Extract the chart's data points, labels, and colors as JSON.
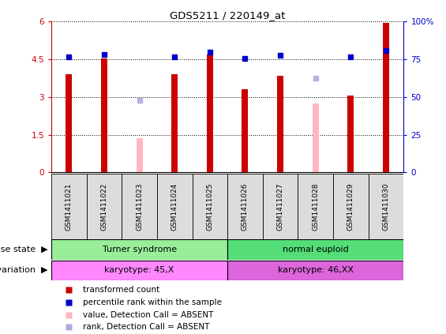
{
  "title": "GDS5211 / 220149_at",
  "samples": [
    "GSM1411021",
    "GSM1411022",
    "GSM1411023",
    "GSM1411024",
    "GSM1411025",
    "GSM1411026",
    "GSM1411027",
    "GSM1411028",
    "GSM1411029",
    "GSM1411030"
  ],
  "red_values": [
    3.9,
    4.55,
    null,
    3.9,
    4.7,
    3.3,
    3.85,
    null,
    3.05,
    5.95
  ],
  "pink_values": [
    null,
    null,
    1.35,
    null,
    null,
    null,
    null,
    2.75,
    null,
    null
  ],
  "blue_values": [
    4.6,
    4.7,
    null,
    4.6,
    4.8,
    4.55,
    4.65,
    null,
    4.6,
    4.85
  ],
  "lavender_values": [
    null,
    null,
    2.87,
    null,
    null,
    null,
    null,
    3.75,
    null,
    null
  ],
  "ylim": [
    0,
    6
  ],
  "y2lim": [
    0,
    100
  ],
  "yticks": [
    0,
    1.5,
    3.0,
    4.5,
    6.0
  ],
  "y2ticks": [
    0,
    25,
    50,
    75,
    100
  ],
  "ytick_labels": [
    "0",
    "1.5",
    "3",
    "4.5",
    "6"
  ],
  "y2tick_labels": [
    "0",
    "25",
    "50",
    "75",
    "100%"
  ],
  "disease_state_groups": [
    {
      "label": "Turner syndrome",
      "start": 0,
      "end": 5,
      "color": "#99EE99"
    },
    {
      "label": "normal euploid",
      "start": 5,
      "end": 10,
      "color": "#55DD77"
    }
  ],
  "genotype_groups": [
    {
      "label": "karyotype: 45,X",
      "start": 0,
      "end": 5,
      "color": "#FF88FF"
    },
    {
      "label": "karyotype: 46,XX",
      "start": 5,
      "end": 10,
      "color": "#DD66DD"
    }
  ],
  "legend_items": [
    {
      "label": "transformed count",
      "color": "#CC0000"
    },
    {
      "label": "percentile rank within the sample",
      "color": "#0000CC"
    },
    {
      "label": "value, Detection Call = ABSENT",
      "color": "#FFB6C1"
    },
    {
      "label": "rank, Detection Call = ABSENT",
      "color": "#AAAADD"
    }
  ],
  "bar_width": 0.18,
  "red_color": "#CC0000",
  "pink_color": "#FFB6C1",
  "blue_color": "#0000CC",
  "lavender_color": "#AAAADD",
  "bg_color": "#DCDCDC",
  "plot_bg": "white",
  "tick_fontsize": 7.5,
  "sample_fontsize": 6.5,
  "annot_fontsize": 8,
  "legend_fontsize": 7.5
}
